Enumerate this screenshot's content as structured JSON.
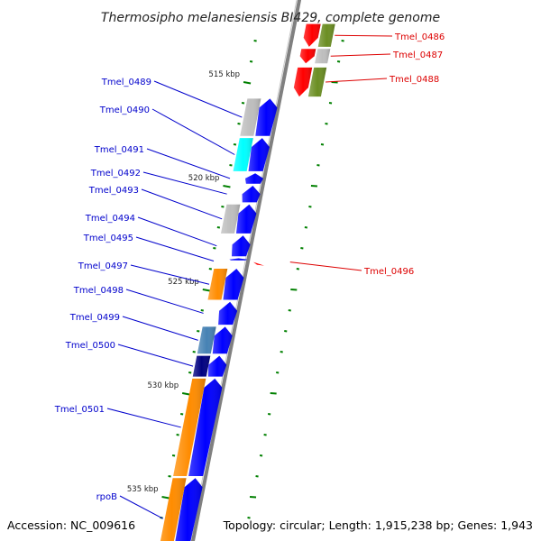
{
  "title": "Thermosipho melanesiensis BI429, complete genome",
  "footer": {
    "accession": "Accession: NC_009616",
    "summary": "Topology: circular; Length: 1,915,238 bp; Genes: 1,943"
  },
  "colors": {
    "forward_label": "#0000cc",
    "reverse_label": "#dd0000",
    "cds_forward": "#0000ff",
    "cds_reverse": "#ff0000",
    "backbone": "#808080",
    "tick": "#008000"
  },
  "scale": {
    "ticks": [
      {
        "kbp": 515,
        "label": "515 kbp"
      },
      {
        "kbp": 520,
        "label": "520 kbp"
      },
      {
        "kbp": 525,
        "label": "525 kbp"
      },
      {
        "kbp": 530,
        "label": "530 kbp"
      },
      {
        "kbp": 535,
        "label": "535 kbp"
      }
    ]
  },
  "genes": [
    {
      "name": "Tmel_0486",
      "strand": "reverse",
      "kbp_start": 512.2,
      "kbp_end": 513.3,
      "cog_color": "#6b8e23"
    },
    {
      "name": "Tmel_0487",
      "strand": "reverse",
      "kbp_start": 513.4,
      "kbp_end": 514.1,
      "cog_color": "#bebebe"
    },
    {
      "name": "Tmel_0488",
      "strand": "reverse",
      "kbp_start": 514.3,
      "kbp_end": 515.7,
      "cog_color": "#6b8e23"
    },
    {
      "name": "Tmel_0489",
      "strand": "forward",
      "kbp_start": 515.8,
      "kbp_end": 517.6,
      "cog_color": "#bebebe"
    },
    {
      "name": "Tmel_0490",
      "strand": "forward",
      "kbp_start": 517.7,
      "kbp_end": 519.3,
      "cog_color": "#00ffff"
    },
    {
      "name": "Tmel_0491",
      "strand": "forward",
      "kbp_start": 519.4,
      "kbp_end": 519.9,
      "cog_color": "#ffffff"
    },
    {
      "name": "Tmel_0492",
      "strand": "forward",
      "kbp_start": 520.0,
      "kbp_end": 520.8,
      "cog_color": "#ffffff"
    },
    {
      "name": "Tmel_0493",
      "strand": "forward",
      "kbp_start": 520.9,
      "kbp_end": 522.3,
      "cog_color": "#bebebe"
    },
    {
      "name": "Tmel_0494",
      "strand": "forward",
      "kbp_start": 522.4,
      "kbp_end": 523.4,
      "cog_color": "#ffffff"
    },
    {
      "name": "Tmel_0495",
      "strand": "forward",
      "kbp_start": 523.5,
      "kbp_end": 523.6,
      "cog_color": "#ffffff"
    },
    {
      "name": "Tmel_0496",
      "strand": "reverse",
      "kbp_start": 523.55,
      "kbp_end": 523.65,
      "cog_color": "#ffffff"
    },
    {
      "name": "Tmel_0497",
      "strand": "forward",
      "kbp_start": 524.0,
      "kbp_end": 525.5,
      "cog_color": "#ff8c00"
    },
    {
      "name": "Tmel_0498",
      "strand": "forward",
      "kbp_start": 525.6,
      "kbp_end": 526.7,
      "cog_color": "#ffffff"
    },
    {
      "name": "Tmel_0499",
      "strand": "forward",
      "kbp_start": 526.8,
      "kbp_end": 528.1,
      "cog_color": "#4682b4"
    },
    {
      "name": "Tmel_0500",
      "strand": "forward",
      "kbp_start": 528.2,
      "kbp_end": 529.2,
      "cog_color": "#000080"
    },
    {
      "name": "Tmel_0501",
      "strand": "forward",
      "kbp_start": 529.3,
      "kbp_end": 534.0,
      "cog_color": "#ff8c00"
    },
    {
      "name": "rpoB",
      "strand": "forward",
      "kbp_start": 534.1,
      "kbp_end": 538.0,
      "cog_color": "#ff8c00"
    }
  ]
}
